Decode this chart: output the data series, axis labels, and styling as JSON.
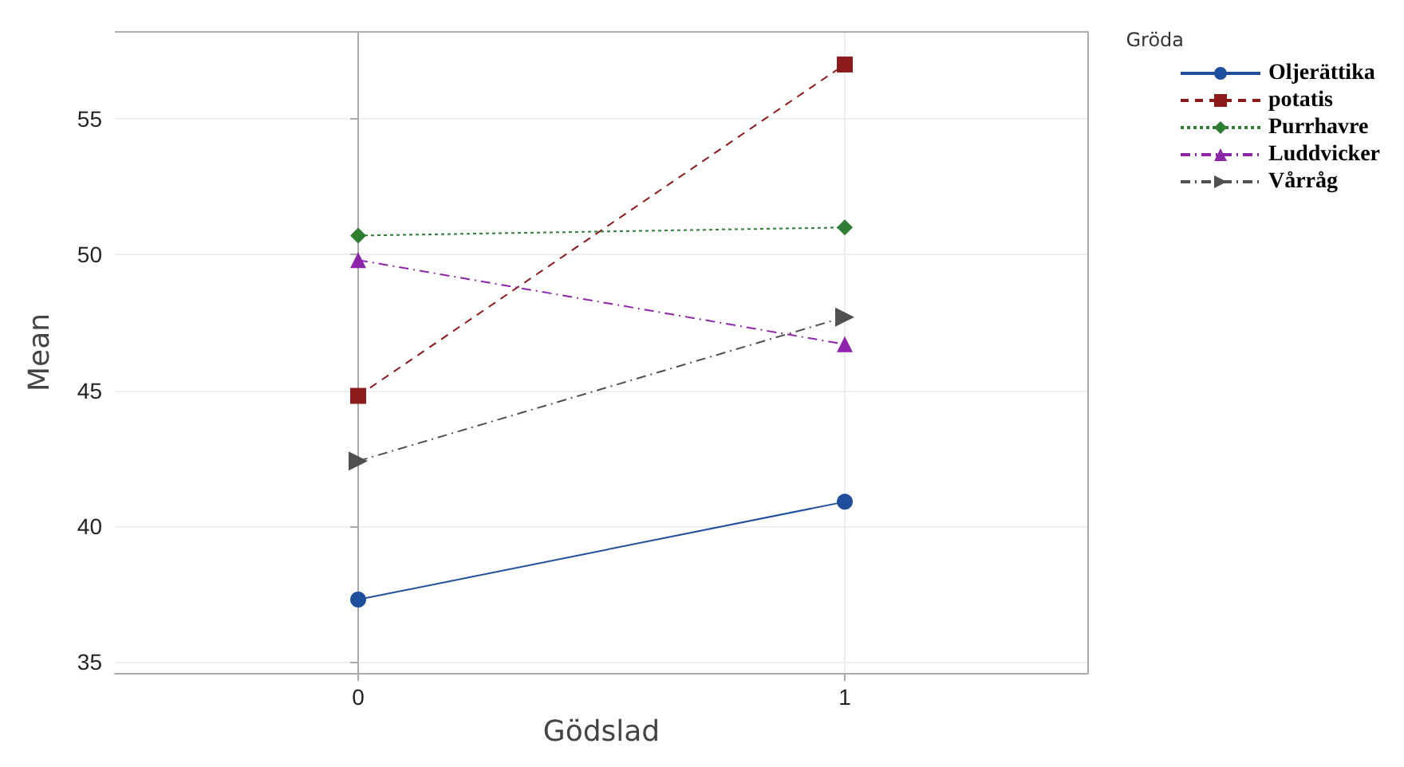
{
  "chart_data": {
    "type": "line",
    "xlabel": "Gödslad",
    "ylabel": "Mean",
    "legend_title": "Gröda",
    "x": [
      0,
      1
    ],
    "xlim": [
      -0.5,
      1.5
    ],
    "xticks": [
      0,
      1
    ],
    "ylim": [
      34.6,
      58.2
    ],
    "yticks": [
      35,
      40,
      45,
      50,
      55
    ],
    "grid": true,
    "legend": "top right",
    "series": [
      {
        "name": "Oljerättika",
        "color": "#1f4e9c",
        "values": [
          37.3,
          40.9
        ],
        "marker": "circle",
        "line_style": "solid"
      },
      {
        "name": "potatis",
        "color": "#8b1a1a",
        "values": [
          44.8,
          57.0
        ],
        "marker": "square",
        "line_style": "dashed"
      },
      {
        "name": "Purrhavre",
        "color": "#2e7d32",
        "values": [
          50.7,
          51.0
        ],
        "marker": "diamond",
        "line_style": "dotted"
      },
      {
        "name": "Luddvicker",
        "color": "#8e24aa",
        "values": [
          49.8,
          46.7
        ],
        "marker": "triangle",
        "line_style": "dashdot"
      },
      {
        "name": "Vårråg",
        "color": "#505050",
        "values": [
          42.4,
          47.7
        ],
        "marker": "triangle-right",
        "line_style": "dashdot"
      }
    ]
  }
}
